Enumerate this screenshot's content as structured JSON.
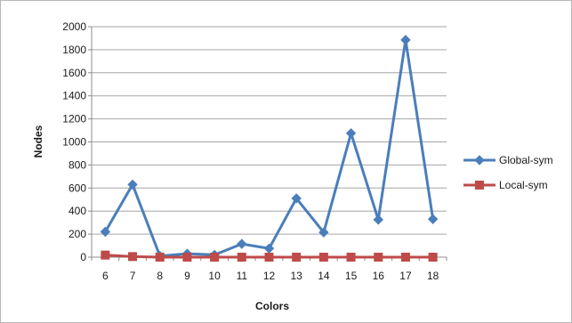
{
  "chart_data": {
    "type": "line",
    "title": "",
    "xlabel": "Colors",
    "ylabel": "Nodes",
    "categories": [
      "6",
      "7",
      "8",
      "9",
      "10",
      "11",
      "12",
      "13",
      "14",
      "15",
      "16",
      "17",
      "18"
    ],
    "ylim": [
      0,
      2000
    ],
    "yticks": [
      "0",
      "200",
      "400",
      "600",
      "800",
      "1000",
      "1200",
      "1400",
      "1600",
      "1800",
      "2000"
    ],
    "grid": "horizontal",
    "legend_position": "right",
    "series": [
      {
        "name": "Global-sym",
        "color": "#4A7EBB",
        "marker": "diamond",
        "values": [
          220,
          630,
          10,
          30,
          20,
          115,
          75,
          510,
          215,
          1075,
          325,
          1885,
          330
        ]
      },
      {
        "name": "Local-sym",
        "color": "#BE4B48",
        "marker": "square",
        "values": [
          18,
          5,
          0,
          0,
          0,
          0,
          0,
          0,
          0,
          0,
          0,
          0,
          0
        ]
      }
    ]
  }
}
